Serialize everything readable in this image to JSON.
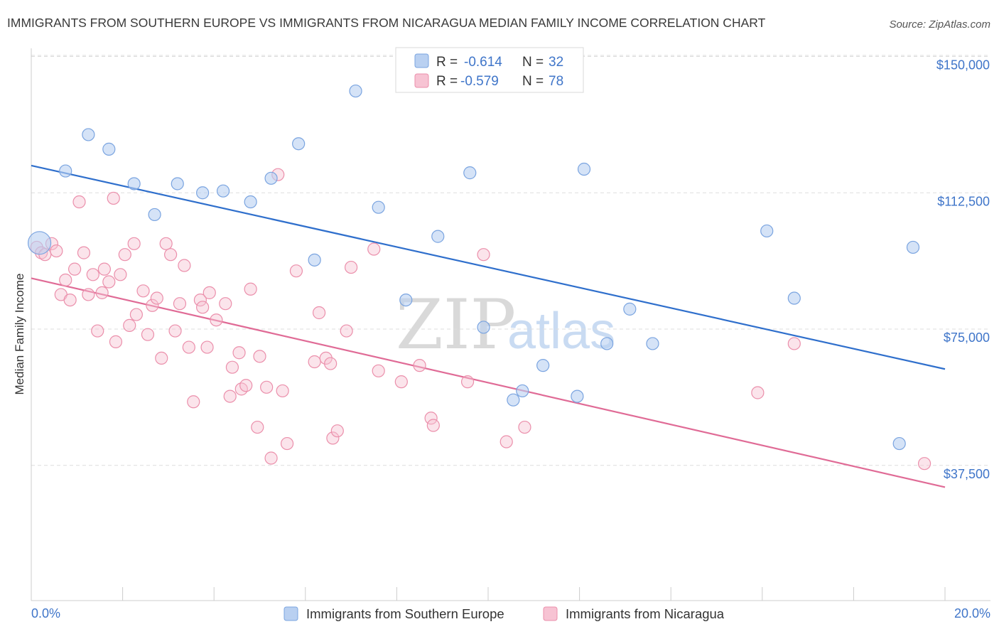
{
  "title": "IMMIGRANTS FROM SOUTHERN EUROPE VS IMMIGRANTS FROM NICARAGUA MEDIAN FAMILY INCOME CORRELATION CHART",
  "source": "Source: ZipAtlas.com",
  "watermark": {
    "zip": "ZIP",
    "atlas": "atlas"
  },
  "colors": {
    "blue_fill": "#b9d0f1",
    "blue_stroke": "#7aa4e0",
    "blue_line": "#2f6fcc",
    "pink_fill": "#f7c3d3",
    "pink_stroke": "#eb8fab",
    "pink_line": "#e06b96",
    "tick_text": "#3f75c9",
    "grid": "#dddddd"
  },
  "legend": {
    "r_label": "R =",
    "n_label": "N =",
    "series": [
      {
        "r": "-0.614",
        "n": "32"
      },
      {
        "r": "-0.579",
        "n": "78"
      }
    ]
  },
  "chart_data": {
    "type": "scatter",
    "title": "IMMIGRANTS FROM SOUTHERN EUROPE VS IMMIGRANTS FROM NICARAGUA MEDIAN FAMILY INCOME CORRELATION CHART",
    "xlabel": "",
    "ylabel": "Median Family Income",
    "xlim": [
      0,
      20
    ],
    "ylim": [
      0,
      155000
    ],
    "x_tick_labels": [
      "0.0%",
      "20.0%"
    ],
    "y_ticks": [
      37500,
      75000,
      112500,
      150000
    ],
    "y_tick_labels": [
      "$37,500",
      "$75,000",
      "$112,500",
      "$150,000"
    ],
    "grid": true,
    "legend_position": "top-center",
    "series": [
      {
        "name": "Immigrants from Southern Europe",
        "color": "blue",
        "trend": {
          "x": [
            0,
            20
          ],
          "y": [
            120000,
            64000
          ]
        },
        "points": [
          {
            "x": 0.18,
            "y": 98700,
            "big": true
          },
          {
            "x": 0.75,
            "y": 118500
          },
          {
            "x": 1.25,
            "y": 128500
          },
          {
            "x": 1.7,
            "y": 124500
          },
          {
            "x": 2.25,
            "y": 115000
          },
          {
            "x": 2.7,
            "y": 106500
          },
          {
            "x": 3.2,
            "y": 115000
          },
          {
            "x": 3.75,
            "y": 112500
          },
          {
            "x": 4.2,
            "y": 113000
          },
          {
            "x": 4.8,
            "y": 110000
          },
          {
            "x": 5.25,
            "y": 116500
          },
          {
            "x": 5.85,
            "y": 126000
          },
          {
            "x": 7.1,
            "y": 140500
          },
          {
            "x": 6.2,
            "y": 94000
          },
          {
            "x": 7.6,
            "y": 108500
          },
          {
            "x": 8.9,
            "y": 100500
          },
          {
            "x": 8.2,
            "y": 83000
          },
          {
            "x": 9.6,
            "y": 118000
          },
          {
            "x": 12.1,
            "y": 119000
          },
          {
            "x": 9.9,
            "y": 75500
          },
          {
            "x": 10.75,
            "y": 58000
          },
          {
            "x": 10.55,
            "y": 55500
          },
          {
            "x": 11.2,
            "y": 65000
          },
          {
            "x": 11.95,
            "y": 56500
          },
          {
            "x": 12.6,
            "y": 71000
          },
          {
            "x": 13.1,
            "y": 80500
          },
          {
            "x": 13.6,
            "y": 71000
          },
          {
            "x": 16.1,
            "y": 102000
          },
          {
            "x": 16.7,
            "y": 83500
          },
          {
            "x": 19.3,
            "y": 97500
          },
          {
            "x": 19.0,
            "y": 43500
          }
        ]
      },
      {
        "name": "Immigrants from Nicaragua",
        "color": "pink",
        "trend": {
          "x": [
            0,
            20
          ],
          "y": [
            89000,
            31500
          ]
        },
        "points": [
          {
            "x": 0.12,
            "y": 97500
          },
          {
            "x": 0.22,
            "y": 96000
          },
          {
            "x": 0.3,
            "y": 95500
          },
          {
            "x": 0.45,
            "y": 98500
          },
          {
            "x": 0.55,
            "y": 96500
          },
          {
            "x": 0.65,
            "y": 84500
          },
          {
            "x": 0.75,
            "y": 88500
          },
          {
            "x": 0.85,
            "y": 83000
          },
          {
            "x": 0.95,
            "y": 91500
          },
          {
            "x": 1.05,
            "y": 110000
          },
          {
            "x": 1.15,
            "y": 96000
          },
          {
            "x": 1.25,
            "y": 84500
          },
          {
            "x": 1.35,
            "y": 90000
          },
          {
            "x": 1.45,
            "y": 74500
          },
          {
            "x": 1.55,
            "y": 85000
          },
          {
            "x": 1.6,
            "y": 91500
          },
          {
            "x": 1.7,
            "y": 88000
          },
          {
            "x": 1.8,
            "y": 111000
          },
          {
            "x": 1.85,
            "y": 71500
          },
          {
            "x": 1.95,
            "y": 90000
          },
          {
            "x": 2.05,
            "y": 95500
          },
          {
            "x": 2.15,
            "y": 76000
          },
          {
            "x": 2.25,
            "y": 98500
          },
          {
            "x": 2.3,
            "y": 79000
          },
          {
            "x": 2.45,
            "y": 85500
          },
          {
            "x": 2.55,
            "y": 73500
          },
          {
            "x": 2.65,
            "y": 81500
          },
          {
            "x": 2.75,
            "y": 83500
          },
          {
            "x": 2.85,
            "y": 67000
          },
          {
            "x": 2.95,
            "y": 98500
          },
          {
            "x": 3.05,
            "y": 95500
          },
          {
            "x": 3.15,
            "y": 74500
          },
          {
            "x": 3.25,
            "y": 82000
          },
          {
            "x": 3.35,
            "y": 92500
          },
          {
            "x": 3.45,
            "y": 70000
          },
          {
            "x": 3.55,
            "y": 55000
          },
          {
            "x": 3.7,
            "y": 83000
          },
          {
            "x": 3.75,
            "y": 81000
          },
          {
            "x": 3.85,
            "y": 70000
          },
          {
            "x": 3.9,
            "y": 85000
          },
          {
            "x": 4.05,
            "y": 77500
          },
          {
            "x": 4.25,
            "y": 82000
          },
          {
            "x": 4.4,
            "y": 64500
          },
          {
            "x": 4.35,
            "y": 56500
          },
          {
            "x": 4.55,
            "y": 68500
          },
          {
            "x": 4.6,
            "y": 58500
          },
          {
            "x": 4.7,
            "y": 59500
          },
          {
            "x": 4.8,
            "y": 86000
          },
          {
            "x": 4.95,
            "y": 48000
          },
          {
            "x": 5.0,
            "y": 67500
          },
          {
            "x": 5.15,
            "y": 59000
          },
          {
            "x": 5.25,
            "y": 39500
          },
          {
            "x": 5.4,
            "y": 117500
          },
          {
            "x": 5.5,
            "y": 58000
          },
          {
            "x": 5.6,
            "y": 43500
          },
          {
            "x": 5.8,
            "y": 91000
          },
          {
            "x": 6.2,
            "y": 66000
          },
          {
            "x": 6.3,
            "y": 79500
          },
          {
            "x": 6.45,
            "y": 67000
          },
          {
            "x": 6.55,
            "y": 65500
          },
          {
            "x": 6.6,
            "y": 45000
          },
          {
            "x": 6.7,
            "y": 47000
          },
          {
            "x": 6.9,
            "y": 74500
          },
          {
            "x": 7.0,
            "y": 92000
          },
          {
            "x": 7.5,
            "y": 97000
          },
          {
            "x": 7.6,
            "y": 63500
          },
          {
            "x": 8.1,
            "y": 60500
          },
          {
            "x": 8.5,
            "y": 65000
          },
          {
            "x": 8.75,
            "y": 50500
          },
          {
            "x": 8.8,
            "y": 48500
          },
          {
            "x": 9.55,
            "y": 60500
          },
          {
            "x": 9.9,
            "y": 95500
          },
          {
            "x": 10.4,
            "y": 44000
          },
          {
            "x": 10.8,
            "y": 48000
          },
          {
            "x": 15.9,
            "y": 57500
          },
          {
            "x": 16.7,
            "y": 71000
          },
          {
            "x": 19.55,
            "y": 38000
          }
        ]
      }
    ]
  },
  "bottom_legend": [
    "Immigrants from Southern Europe",
    "Immigrants from Nicaragua"
  ]
}
